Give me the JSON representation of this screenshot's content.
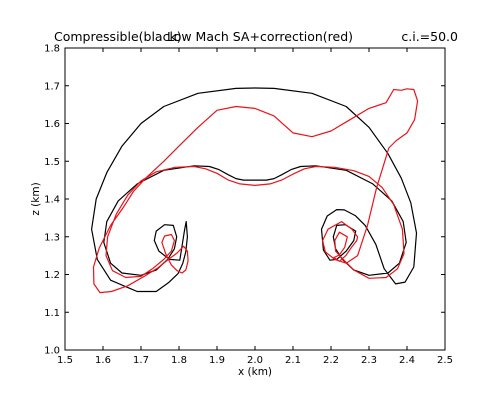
{
  "titles": {
    "left": "Compressible(black)",
    "center": "Low Mach SA+correction(red)",
    "right": "c.i.=50.0"
  },
  "colors": {
    "compressible": "#000000",
    "low_mach": "#e8141b"
  },
  "chart_data": {
    "type": "line",
    "title": "",
    "xlabel": "x (km)",
    "ylabel": "z (km)",
    "xlim": [
      1.5,
      2.5
    ],
    "ylim": [
      1.0,
      1.8
    ],
    "xticks": [
      "1.5",
      "1.6",
      "1.7",
      "1.8",
      "1.9",
      "2.0",
      "2.1",
      "2.2",
      "2.3",
      "2.4",
      "2.5"
    ],
    "yticks": [
      "1.0",
      "1.1",
      "1.2",
      "1.3",
      "1.4",
      "1.5",
      "1.6",
      "1.7",
      "1.8"
    ],
    "grid": false,
    "series": [
      {
        "key": "compressible",
        "color": "#000000",
        "x": [
          1.802,
          1.775,
          1.747,
          1.735,
          1.74,
          1.762,
          1.785,
          1.794,
          1.788,
          1.77,
          1.74,
          1.7,
          1.65,
          1.62,
          1.602,
          1.61,
          1.64,
          1.69,
          1.76,
          1.84,
          1.88,
          1.905,
          1.93,
          1.95,
          1.97,
          2.0,
          2.03,
          2.05,
          2.07,
          2.095,
          2.12,
          2.16,
          2.24,
          2.31,
          2.36,
          2.39,
          2.398,
          2.38,
          2.35,
          2.3,
          2.26,
          2.23,
          2.212,
          2.206,
          2.215,
          2.238,
          2.265,
          2.26,
          2.24,
          2.215,
          2.197,
          2.18,
          2.175,
          2.19,
          2.215,
          2.235,
          2.264,
          2.29,
          2.318,
          2.34,
          2.37,
          2.395,
          2.418,
          2.425,
          2.41,
          2.385,
          2.35,
          2.3,
          2.24,
          2.15,
          2.05,
          2.0,
          1.95,
          1.85,
          1.76,
          1.7,
          1.65,
          1.61,
          1.582,
          1.57,
          1.585,
          1.62,
          1.69,
          1.74,
          1.772,
          1.798,
          1.81,
          1.818,
          1.822,
          1.819,
          1.815,
          1.802
        ],
        "y": [
          1.238,
          1.24,
          1.262,
          1.29,
          1.315,
          1.332,
          1.33,
          1.3,
          1.268,
          1.24,
          1.212,
          1.198,
          1.204,
          1.23,
          1.285,
          1.34,
          1.395,
          1.44,
          1.476,
          1.488,
          1.486,
          1.478,
          1.464,
          1.454,
          1.45,
          1.45,
          1.45,
          1.454,
          1.464,
          1.478,
          1.486,
          1.488,
          1.476,
          1.44,
          1.395,
          1.34,
          1.285,
          1.23,
          1.204,
          1.198,
          1.212,
          1.24,
          1.268,
          1.3,
          1.33,
          1.332,
          1.315,
          1.29,
          1.262,
          1.24,
          1.238,
          1.265,
          1.32,
          1.355,
          1.372,
          1.371,
          1.356,
          1.33,
          1.28,
          1.215,
          1.175,
          1.18,
          1.22,
          1.31,
          1.39,
          1.455,
          1.52,
          1.59,
          1.645,
          1.68,
          1.693,
          1.694,
          1.693,
          1.68,
          1.645,
          1.6,
          1.54,
          1.47,
          1.4,
          1.32,
          1.24,
          1.185,
          1.155,
          1.155,
          1.178,
          1.203,
          1.23,
          1.26,
          1.3,
          1.34,
          1.32,
          1.238
        ]
      },
      {
        "key": "low_mach",
        "color": "#e8141b",
        "x": [
          1.78,
          1.765,
          1.755,
          1.762,
          1.78,
          1.788,
          1.78,
          1.76,
          1.73,
          1.7,
          1.66,
          1.625,
          1.608,
          1.612,
          1.635,
          1.665,
          1.7,
          1.74,
          1.79,
          1.84,
          1.87,
          1.9,
          1.93,
          1.96,
          2.0,
          2.04,
          2.07,
          2.1,
          2.13,
          2.16,
          2.21,
          2.26,
          2.3,
          2.335,
          2.365,
          2.388,
          2.392,
          2.375,
          2.345,
          2.3,
          2.26,
          2.23,
          2.212,
          2.21,
          2.222,
          2.243,
          2.236,
          2.222,
          2.208,
          2.222,
          2.239,
          2.256,
          2.268,
          2.27,
          2.255,
          2.228,
          2.192,
          2.178,
          2.185,
          2.21,
          2.24,
          2.27,
          2.296,
          2.32,
          2.34,
          2.352,
          2.372,
          2.4,
          2.42,
          2.428,
          2.418,
          2.4,
          2.385,
          2.365,
          2.345,
          2.3,
          2.25,
          2.2,
          2.15,
          2.1,
          2.05,
          2.0,
          1.95,
          1.9,
          1.85,
          1.8,
          1.76,
          1.712,
          1.68,
          1.655,
          1.62,
          1.59,
          1.575,
          1.576,
          1.592,
          1.622,
          1.665,
          1.71,
          1.745,
          1.772,
          1.795,
          1.812,
          1.822,
          1.824,
          1.818,
          1.808,
          1.795,
          1.78
        ],
        "y": [
          1.225,
          1.255,
          1.285,
          1.302,
          1.306,
          1.29,
          1.262,
          1.24,
          1.215,
          1.195,
          1.192,
          1.21,
          1.25,
          1.3,
          1.36,
          1.41,
          1.448,
          1.472,
          1.484,
          1.486,
          1.48,
          1.468,
          1.45,
          1.44,
          1.436,
          1.44,
          1.45,
          1.466,
          1.48,
          1.486,
          1.484,
          1.475,
          1.46,
          1.43,
          1.385,
          1.32,
          1.255,
          1.215,
          1.192,
          1.19,
          1.212,
          1.242,
          1.262,
          1.29,
          1.312,
          1.3,
          1.272,
          1.252,
          1.245,
          1.235,
          1.25,
          1.275,
          1.29,
          1.3,
          1.32,
          1.34,
          1.32,
          1.29,
          1.26,
          1.24,
          1.23,
          1.25,
          1.33,
          1.43,
          1.495,
          1.535,
          1.555,
          1.575,
          1.61,
          1.66,
          1.69,
          1.692,
          1.688,
          1.69,
          1.655,
          1.64,
          1.61,
          1.58,
          1.565,
          1.575,
          1.62,
          1.64,
          1.645,
          1.635,
          1.59,
          1.54,
          1.5,
          1.455,
          1.42,
          1.38,
          1.33,
          1.27,
          1.22,
          1.175,
          1.152,
          1.155,
          1.17,
          1.196,
          1.218,
          1.24,
          1.257,
          1.275,
          1.262,
          1.236,
          1.212,
          1.204,
          1.21,
          1.225
        ]
      }
    ]
  }
}
